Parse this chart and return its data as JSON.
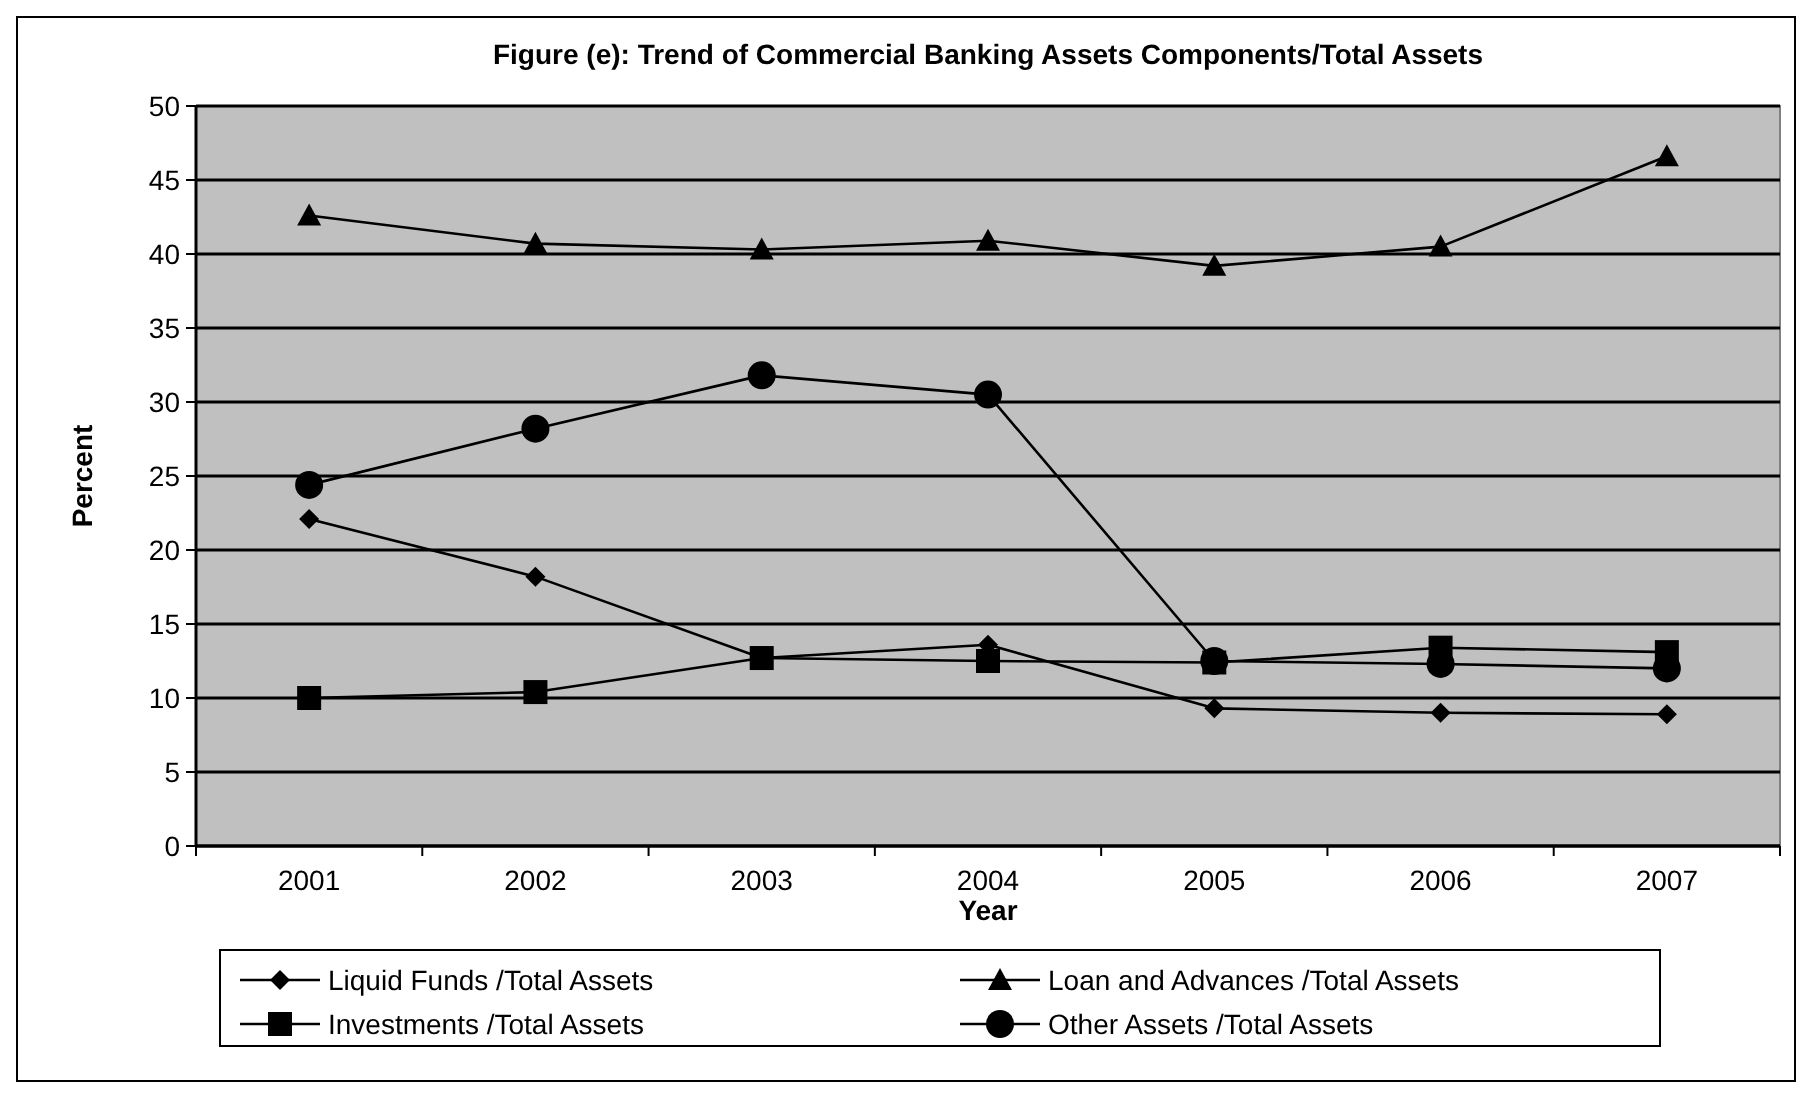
{
  "chart_data": {
    "type": "line",
    "title": "Figure (e): Trend of Commercial Banking Assets Components/Total Assets",
    "xlabel": "Year",
    "ylabel": "Percent",
    "categories": [
      "2001",
      "2002",
      "2003",
      "2004",
      "2005",
      "2006",
      "2007"
    ],
    "series": [
      {
        "name": "Liquid Funds /Total Assets",
        "color": "#000000",
        "marker": "diamond",
        "values": [
          22.1,
          18.2,
          12.7,
          13.6,
          9.3,
          9.0,
          8.9
        ]
      },
      {
        "name": "Loan and Advances /Total Assets",
        "color": "#000000",
        "marker": "triangle",
        "values": [
          42.6,
          40.7,
          40.3,
          40.9,
          39.2,
          40.5,
          46.6
        ]
      },
      {
        "name": "Investments /Total Assets",
        "color": "#000000",
        "marker": "square",
        "values": [
          10.0,
          10.4,
          12.7,
          12.5,
          12.4,
          13.4,
          13.1
        ]
      },
      {
        "name": "Other Assets /Total Assets",
        "color": "#000000",
        "marker": "circle",
        "values": [
          24.4,
          28.2,
          31.8,
          30.5,
          12.5,
          12.3,
          12.0
        ]
      }
    ],
    "ylim": [
      0,
      50
    ],
    "yticks": [
      0,
      5,
      10,
      15,
      20,
      25,
      30,
      35,
      40,
      45,
      50
    ],
    "grid": "y",
    "legend": "bottom"
  }
}
